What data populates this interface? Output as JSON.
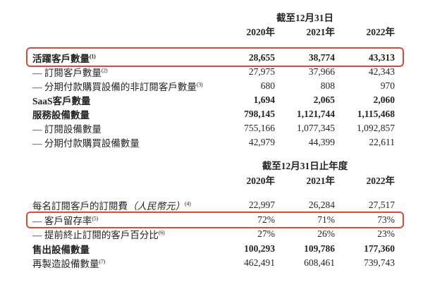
{
  "highlight_color": "#dc4937",
  "table1": {
    "period_header": "截至12月31日",
    "years": [
      "2020年",
      "2021年",
      "2022年"
    ],
    "rows": [
      {
        "label": "活躍客戶數量",
        "sup": "(1)",
        "values": [
          "28,655",
          "38,774",
          "43,313"
        ],
        "bold": true,
        "boxed": true
      },
      {
        "label": "— 訂閱客戶數量",
        "sup": "(2)",
        "values": [
          "27,975",
          "37,966",
          "42,343"
        ],
        "bold": false,
        "boxed": false
      },
      {
        "label": "— 分期付款購買設備的非訂閱客戶數量",
        "sup": "(3)",
        "values": [
          "680",
          "808",
          "970"
        ],
        "bold": false,
        "boxed": false
      },
      {
        "label": "SaaS客戶數量",
        "sup": "",
        "values": [
          "1,694",
          "2,065",
          "2,060"
        ],
        "bold": true,
        "boxed": false
      },
      {
        "label": "服務設備數量",
        "sup": "",
        "values": [
          "798,145",
          "1,121,744",
          "1,115,468"
        ],
        "bold": true,
        "boxed": false
      },
      {
        "label": "— 訂閱設備數量",
        "sup": "",
        "values": [
          "755,166",
          "1,077,345",
          "1,092,857"
        ],
        "bold": false,
        "boxed": false
      },
      {
        "label": "— 分期付款購買設備數量",
        "sup": "",
        "values": [
          "42,979",
          "44,399",
          "22,611"
        ],
        "bold": false,
        "boxed": false
      }
    ]
  },
  "table2": {
    "period_header": "截至12月31日止年度",
    "years": [
      "2020年",
      "2021年",
      "2022年"
    ],
    "rows": [
      {
        "label": "每名訂閱客戶的訂閱費",
        "italic": "（人民幣元）",
        "sup": "(4)",
        "values": [
          "22,997",
          "26,284",
          "27,517"
        ],
        "bold": false,
        "boxed": false
      },
      {
        "label": "— 客戶留存率",
        "sup": "(5)",
        "values": [
          "72%",
          "71%",
          "73%"
        ],
        "bold": false,
        "boxed": true
      },
      {
        "label": "— 提前終止訂閱的客戶百分比",
        "sup": "(6)",
        "values": [
          "27%",
          "26%",
          "23%"
        ],
        "bold": false,
        "boxed": false
      },
      {
        "label": "售出設備數量",
        "sup": "",
        "values": [
          "100,293",
          "109,786",
          "177,360"
        ],
        "bold": true,
        "boxed": false
      },
      {
        "label": "再製造設備數量",
        "sup": "(7)",
        "values": [
          "462,491",
          "608,461",
          "739,743"
        ],
        "bold": false,
        "boxed": false
      }
    ]
  }
}
